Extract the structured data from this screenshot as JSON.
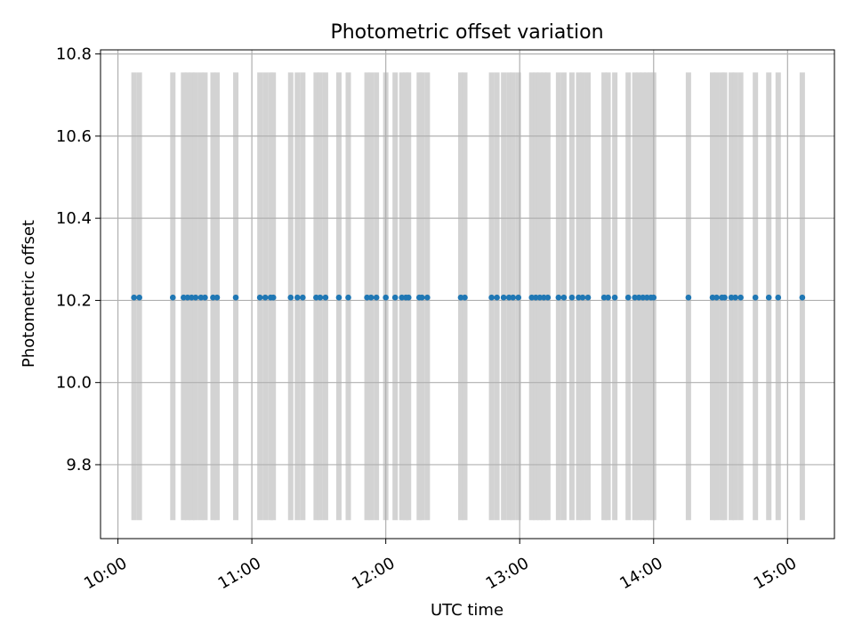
{
  "chart_data": {
    "type": "scatter",
    "title": "Photometric offset variation",
    "xlabel": "UTC time",
    "ylabel": "Photometric offset",
    "x_unit": "hours UTC",
    "xlim": [
      9.87,
      15.35
    ],
    "ylim": [
      9.62,
      10.81
    ],
    "x_ticks": [
      {
        "value": 10,
        "label": "10:00"
      },
      {
        "value": 11,
        "label": "11:00"
      },
      {
        "value": 12,
        "label": "12:00"
      },
      {
        "value": 13,
        "label": "13:00"
      },
      {
        "value": 14,
        "label": "14:00"
      },
      {
        "value": 15,
        "label": "15:00"
      }
    ],
    "y_ticks": [
      {
        "value": 9.8,
        "label": "9.8"
      },
      {
        "value": 10.0,
        "label": "10.0"
      },
      {
        "value": 10.2,
        "label": "10.2"
      },
      {
        "value": 10.4,
        "label": "10.4"
      },
      {
        "value": 10.6,
        "label": "10.6"
      },
      {
        "value": 10.8,
        "label": "10.8"
      }
    ],
    "grid": true,
    "span_band": {
      "y_low": 9.665,
      "y_high": 10.755,
      "color": "#d3d3d3"
    },
    "point_color": "#1f77b4",
    "series": [
      {
        "values": [
          {
            "x": 10.12,
            "y": 10.207
          },
          {
            "x": 10.16,
            "y": 10.207
          },
          {
            "x": 10.41,
            "y": 10.207
          },
          {
            "x": 10.49,
            "y": 10.207
          },
          {
            "x": 10.52,
            "y": 10.207
          },
          {
            "x": 10.55,
            "y": 10.207
          },
          {
            "x": 10.58,
            "y": 10.207
          },
          {
            "x": 10.62,
            "y": 10.207
          },
          {
            "x": 10.65,
            "y": 10.207
          },
          {
            "x": 10.71,
            "y": 10.207
          },
          {
            "x": 10.74,
            "y": 10.207
          },
          {
            "x": 10.88,
            "y": 10.207
          },
          {
            "x": 11.06,
            "y": 10.207
          },
          {
            "x": 11.1,
            "y": 10.207
          },
          {
            "x": 11.14,
            "y": 10.207
          },
          {
            "x": 11.16,
            "y": 10.207
          },
          {
            "x": 11.29,
            "y": 10.207
          },
          {
            "x": 11.34,
            "y": 10.207
          },
          {
            "x": 11.38,
            "y": 10.207
          },
          {
            "x": 11.48,
            "y": 10.207
          },
          {
            "x": 11.51,
            "y": 10.207
          },
          {
            "x": 11.55,
            "y": 10.207
          },
          {
            "x": 11.65,
            "y": 10.207
          },
          {
            "x": 11.72,
            "y": 10.207
          },
          {
            "x": 11.86,
            "y": 10.207
          },
          {
            "x": 11.89,
            "y": 10.207
          },
          {
            "x": 11.93,
            "y": 10.207
          },
          {
            "x": 12.0,
            "y": 10.207
          },
          {
            "x": 12.07,
            "y": 10.207
          },
          {
            "x": 12.12,
            "y": 10.207
          },
          {
            "x": 12.15,
            "y": 10.207
          },
          {
            "x": 12.17,
            "y": 10.207
          },
          {
            "x": 12.25,
            "y": 10.207
          },
          {
            "x": 12.27,
            "y": 10.207
          },
          {
            "x": 12.31,
            "y": 10.207
          },
          {
            "x": 12.56,
            "y": 10.207
          },
          {
            "x": 12.59,
            "y": 10.207
          },
          {
            "x": 12.79,
            "y": 10.207
          },
          {
            "x": 12.83,
            "y": 10.207
          },
          {
            "x": 12.88,
            "y": 10.207
          },
          {
            "x": 12.92,
            "y": 10.207
          },
          {
            "x": 12.95,
            "y": 10.207
          },
          {
            "x": 12.99,
            "y": 10.207
          },
          {
            "x": 13.09,
            "y": 10.207
          },
          {
            "x": 13.12,
            "y": 10.207
          },
          {
            "x": 13.15,
            "y": 10.207
          },
          {
            "x": 13.18,
            "y": 10.207
          },
          {
            "x": 13.21,
            "y": 10.207
          },
          {
            "x": 13.29,
            "y": 10.207
          },
          {
            "x": 13.33,
            "y": 10.207
          },
          {
            "x": 13.39,
            "y": 10.207
          },
          {
            "x": 13.44,
            "y": 10.207
          },
          {
            "x": 13.47,
            "y": 10.207
          },
          {
            "x": 13.51,
            "y": 10.207
          },
          {
            "x": 13.63,
            "y": 10.207
          },
          {
            "x": 13.66,
            "y": 10.207
          },
          {
            "x": 13.71,
            "y": 10.207
          },
          {
            "x": 13.81,
            "y": 10.207
          },
          {
            "x": 13.86,
            "y": 10.207
          },
          {
            "x": 13.89,
            "y": 10.207
          },
          {
            "x": 13.92,
            "y": 10.207
          },
          {
            "x": 13.95,
            "y": 10.207
          },
          {
            "x": 13.98,
            "y": 10.207
          },
          {
            "x": 14.0,
            "y": 10.207
          },
          {
            "x": 14.26,
            "y": 10.207
          },
          {
            "x": 14.44,
            "y": 10.207
          },
          {
            "x": 14.47,
            "y": 10.207
          },
          {
            "x": 14.51,
            "y": 10.207
          },
          {
            "x": 14.53,
            "y": 10.207
          },
          {
            "x": 14.58,
            "y": 10.207
          },
          {
            "x": 14.61,
            "y": 10.207
          },
          {
            "x": 14.65,
            "y": 10.207
          },
          {
            "x": 14.76,
            "y": 10.207
          },
          {
            "x": 14.86,
            "y": 10.207
          },
          {
            "x": 14.93,
            "y": 10.207
          },
          {
            "x": 15.11,
            "y": 10.207
          }
        ]
      }
    ]
  }
}
